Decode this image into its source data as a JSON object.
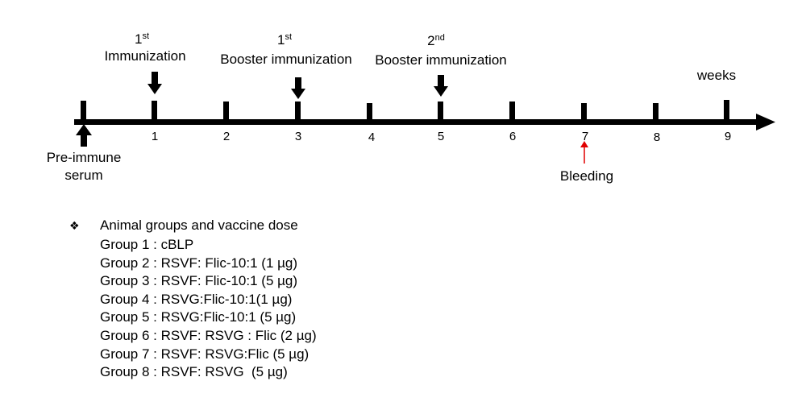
{
  "timeline": {
    "week_numbers": [
      "1",
      "2",
      "3",
      "4",
      "5",
      "6",
      "7",
      "8",
      "9"
    ],
    "unit_label": "weeks",
    "events": {
      "first_immunization": {
        "sup": "st",
        "line1_number": "1",
        "line2": "Immunization",
        "week": 1
      },
      "first_booster": {
        "sup": "st",
        "line1_number": "1",
        "line2": "Booster immunization",
        "week": 3
      },
      "second_booster": {
        "sup": "nd",
        "line1_number": "2",
        "line2": "Booster immunization",
        "week": 5
      },
      "pre_immune": {
        "line1": "Pre-immune",
        "line2": "serum",
        "week": 0
      },
      "bleeding": {
        "label": "Bleeding",
        "week": 7
      }
    },
    "colors": {
      "axis": "#000000",
      "bleeding_arrow": "#e00000"
    }
  },
  "legend": {
    "bullet_icon": "diamond-bullet-icon",
    "bullet": "❖",
    "heading": "Animal groups and vaccine dose",
    "groups": [
      "Group 1 : cBLP",
      "Group 2 : RSVF: Flic-10:1 (1 µg)",
      "Group 3 : RSVF: Flic-10:1 (5 µg)",
      "Group 4 : RSVG:Flic-10:1(1 µg)",
      "Group 5 : RSVG:Flic-10:1 (5 µg)",
      "Group 6 : RSVF: RSVG : Flic (2 µg)",
      "Group 7 : RSVF: RSVG:Flic (5 µg)",
      "Group 8 : RSVF: RSVG  (5 µg)"
    ]
  }
}
